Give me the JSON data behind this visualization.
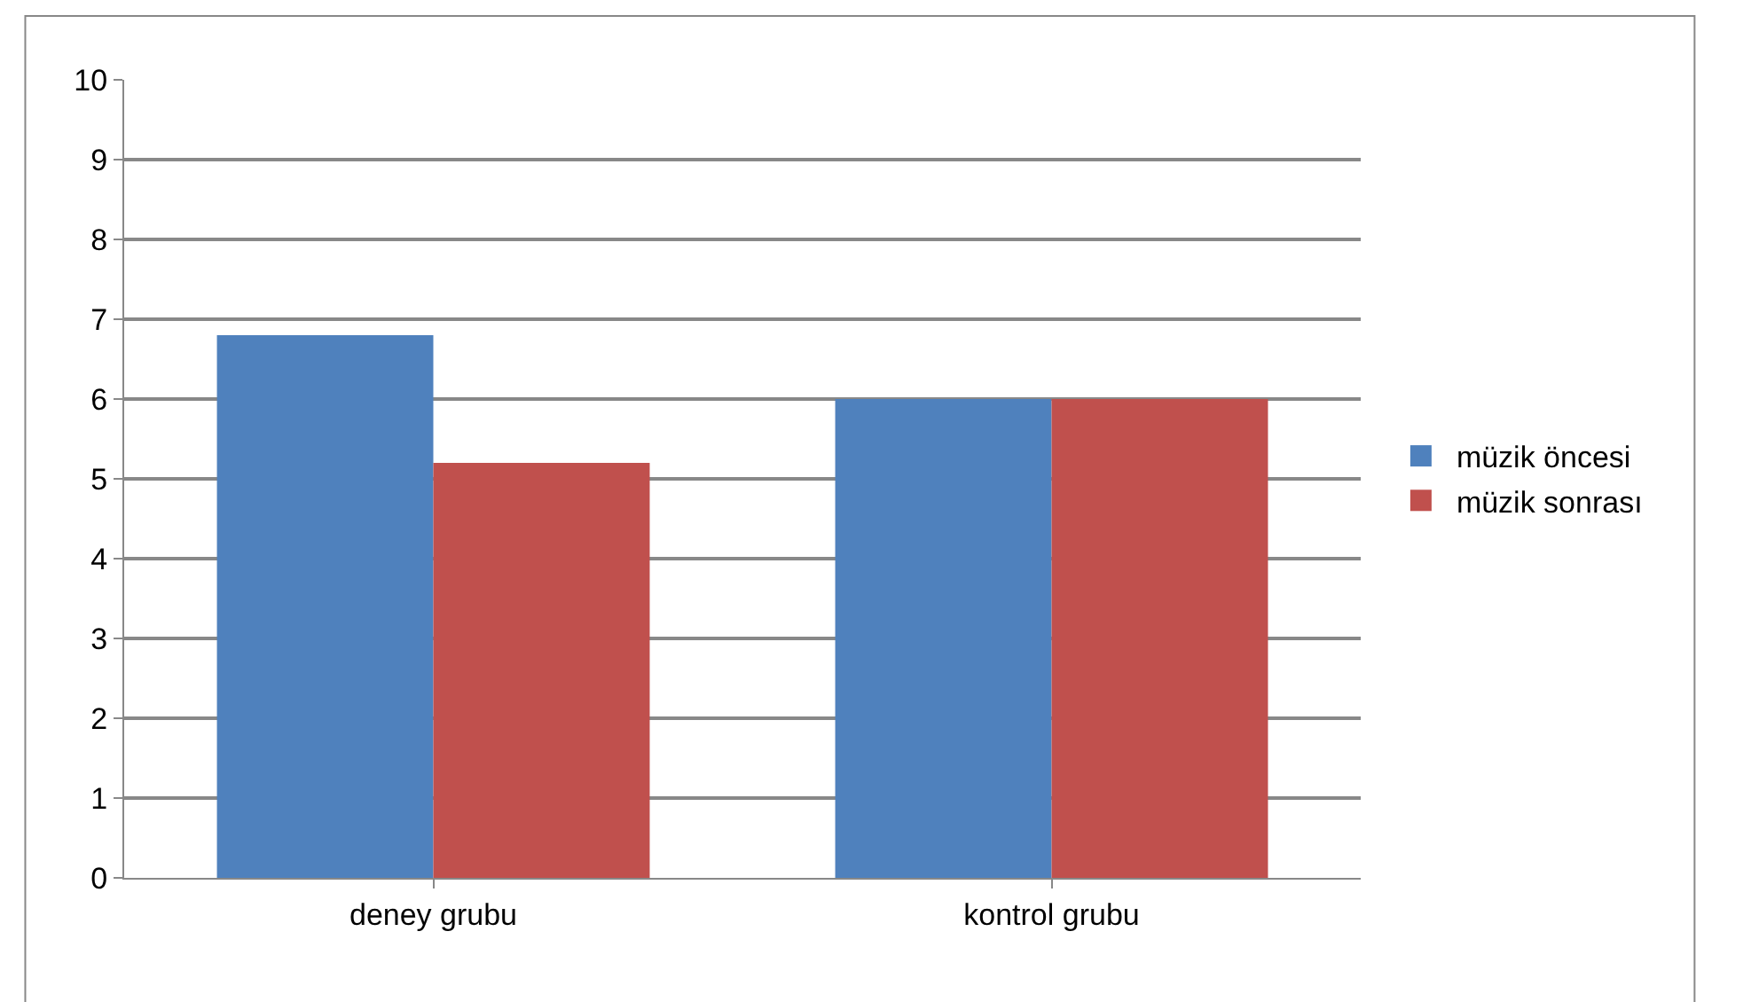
{
  "chart_data": {
    "type": "bar",
    "categories": [
      "deney grubu",
      "kontrol grubu"
    ],
    "series": [
      {
        "name": "müzik öncesi",
        "color": "#4f81bd",
        "values": [
          6.8,
          6.0
        ]
      },
      {
        "name": "müzik sonrası",
        "color": "#c0504d",
        "values": [
          5.2,
          6.0
        ]
      }
    ],
    "ylim": [
      0,
      10
    ],
    "yticks": [
      0,
      1,
      2,
      3,
      4,
      5,
      6,
      7,
      8,
      9,
      10
    ],
    "grid": "y",
    "legend": "right"
  }
}
